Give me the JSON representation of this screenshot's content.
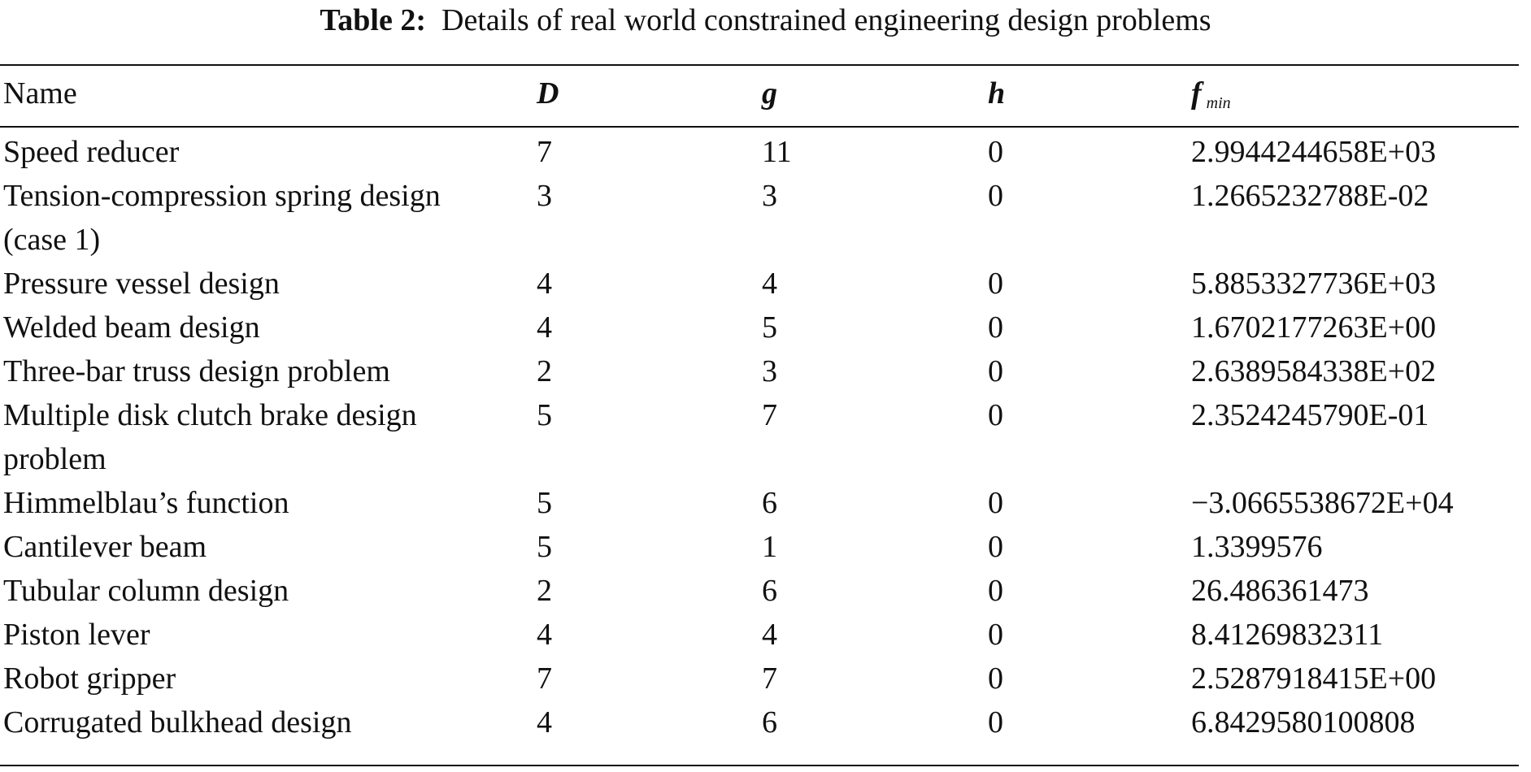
{
  "caption": {
    "label": "Table 2:",
    "text": "Details of real world constrained engineering design problems"
  },
  "columns": {
    "name": "Name",
    "D": "D",
    "g": "g",
    "h": "h",
    "fmin": "f",
    "fmin_sub": "min"
  },
  "rows": [
    {
      "name": "Speed reducer",
      "D": "7",
      "g": "11",
      "h": "0",
      "fmin": "2.9944244658E+03"
    },
    {
      "name": "Tension-compression spring design (case 1)",
      "D": "3",
      "g": "3",
      "h": "0",
      "fmin": "1.2665232788E-02"
    },
    {
      "name": "Pressure vessel design",
      "D": "4",
      "g": "4",
      "h": "0",
      "fmin": "5.8853327736E+03"
    },
    {
      "name": "Welded beam design",
      "D": "4",
      "g": "5",
      "h": "0",
      "fmin": "1.6702177263E+00"
    },
    {
      "name": "Three-bar truss design problem",
      "D": "2",
      "g": "3",
      "h": "0",
      "fmin": "2.6389584338E+02"
    },
    {
      "name": "Multiple disk clutch brake design problem",
      "D": "5",
      "g": "7",
      "h": "0",
      "fmin": "2.3524245790E-01"
    },
    {
      "name": "Himmelblau’s function",
      "D": "5",
      "g": "6",
      "h": "0",
      "fmin": "−3.0665538672E+04"
    },
    {
      "name": "Cantilever beam",
      "D": "5",
      "g": "1",
      "h": "0",
      "fmin": "1.3399576"
    },
    {
      "name": "Tubular column design",
      "D": "2",
      "g": "6",
      "h": "0",
      "fmin": "26.486361473"
    },
    {
      "name": "Piston lever",
      "D": "4",
      "g": "4",
      "h": "0",
      "fmin": "8.41269832311"
    },
    {
      "name": "Robot gripper",
      "D": "7",
      "g": "7",
      "h": "0",
      "fmin": "2.5287918415E+00"
    },
    {
      "name": "Corrugated bulkhead design",
      "D": "4",
      "g": "6",
      "h": "0",
      "fmin": "6.8429580100808"
    }
  ]
}
